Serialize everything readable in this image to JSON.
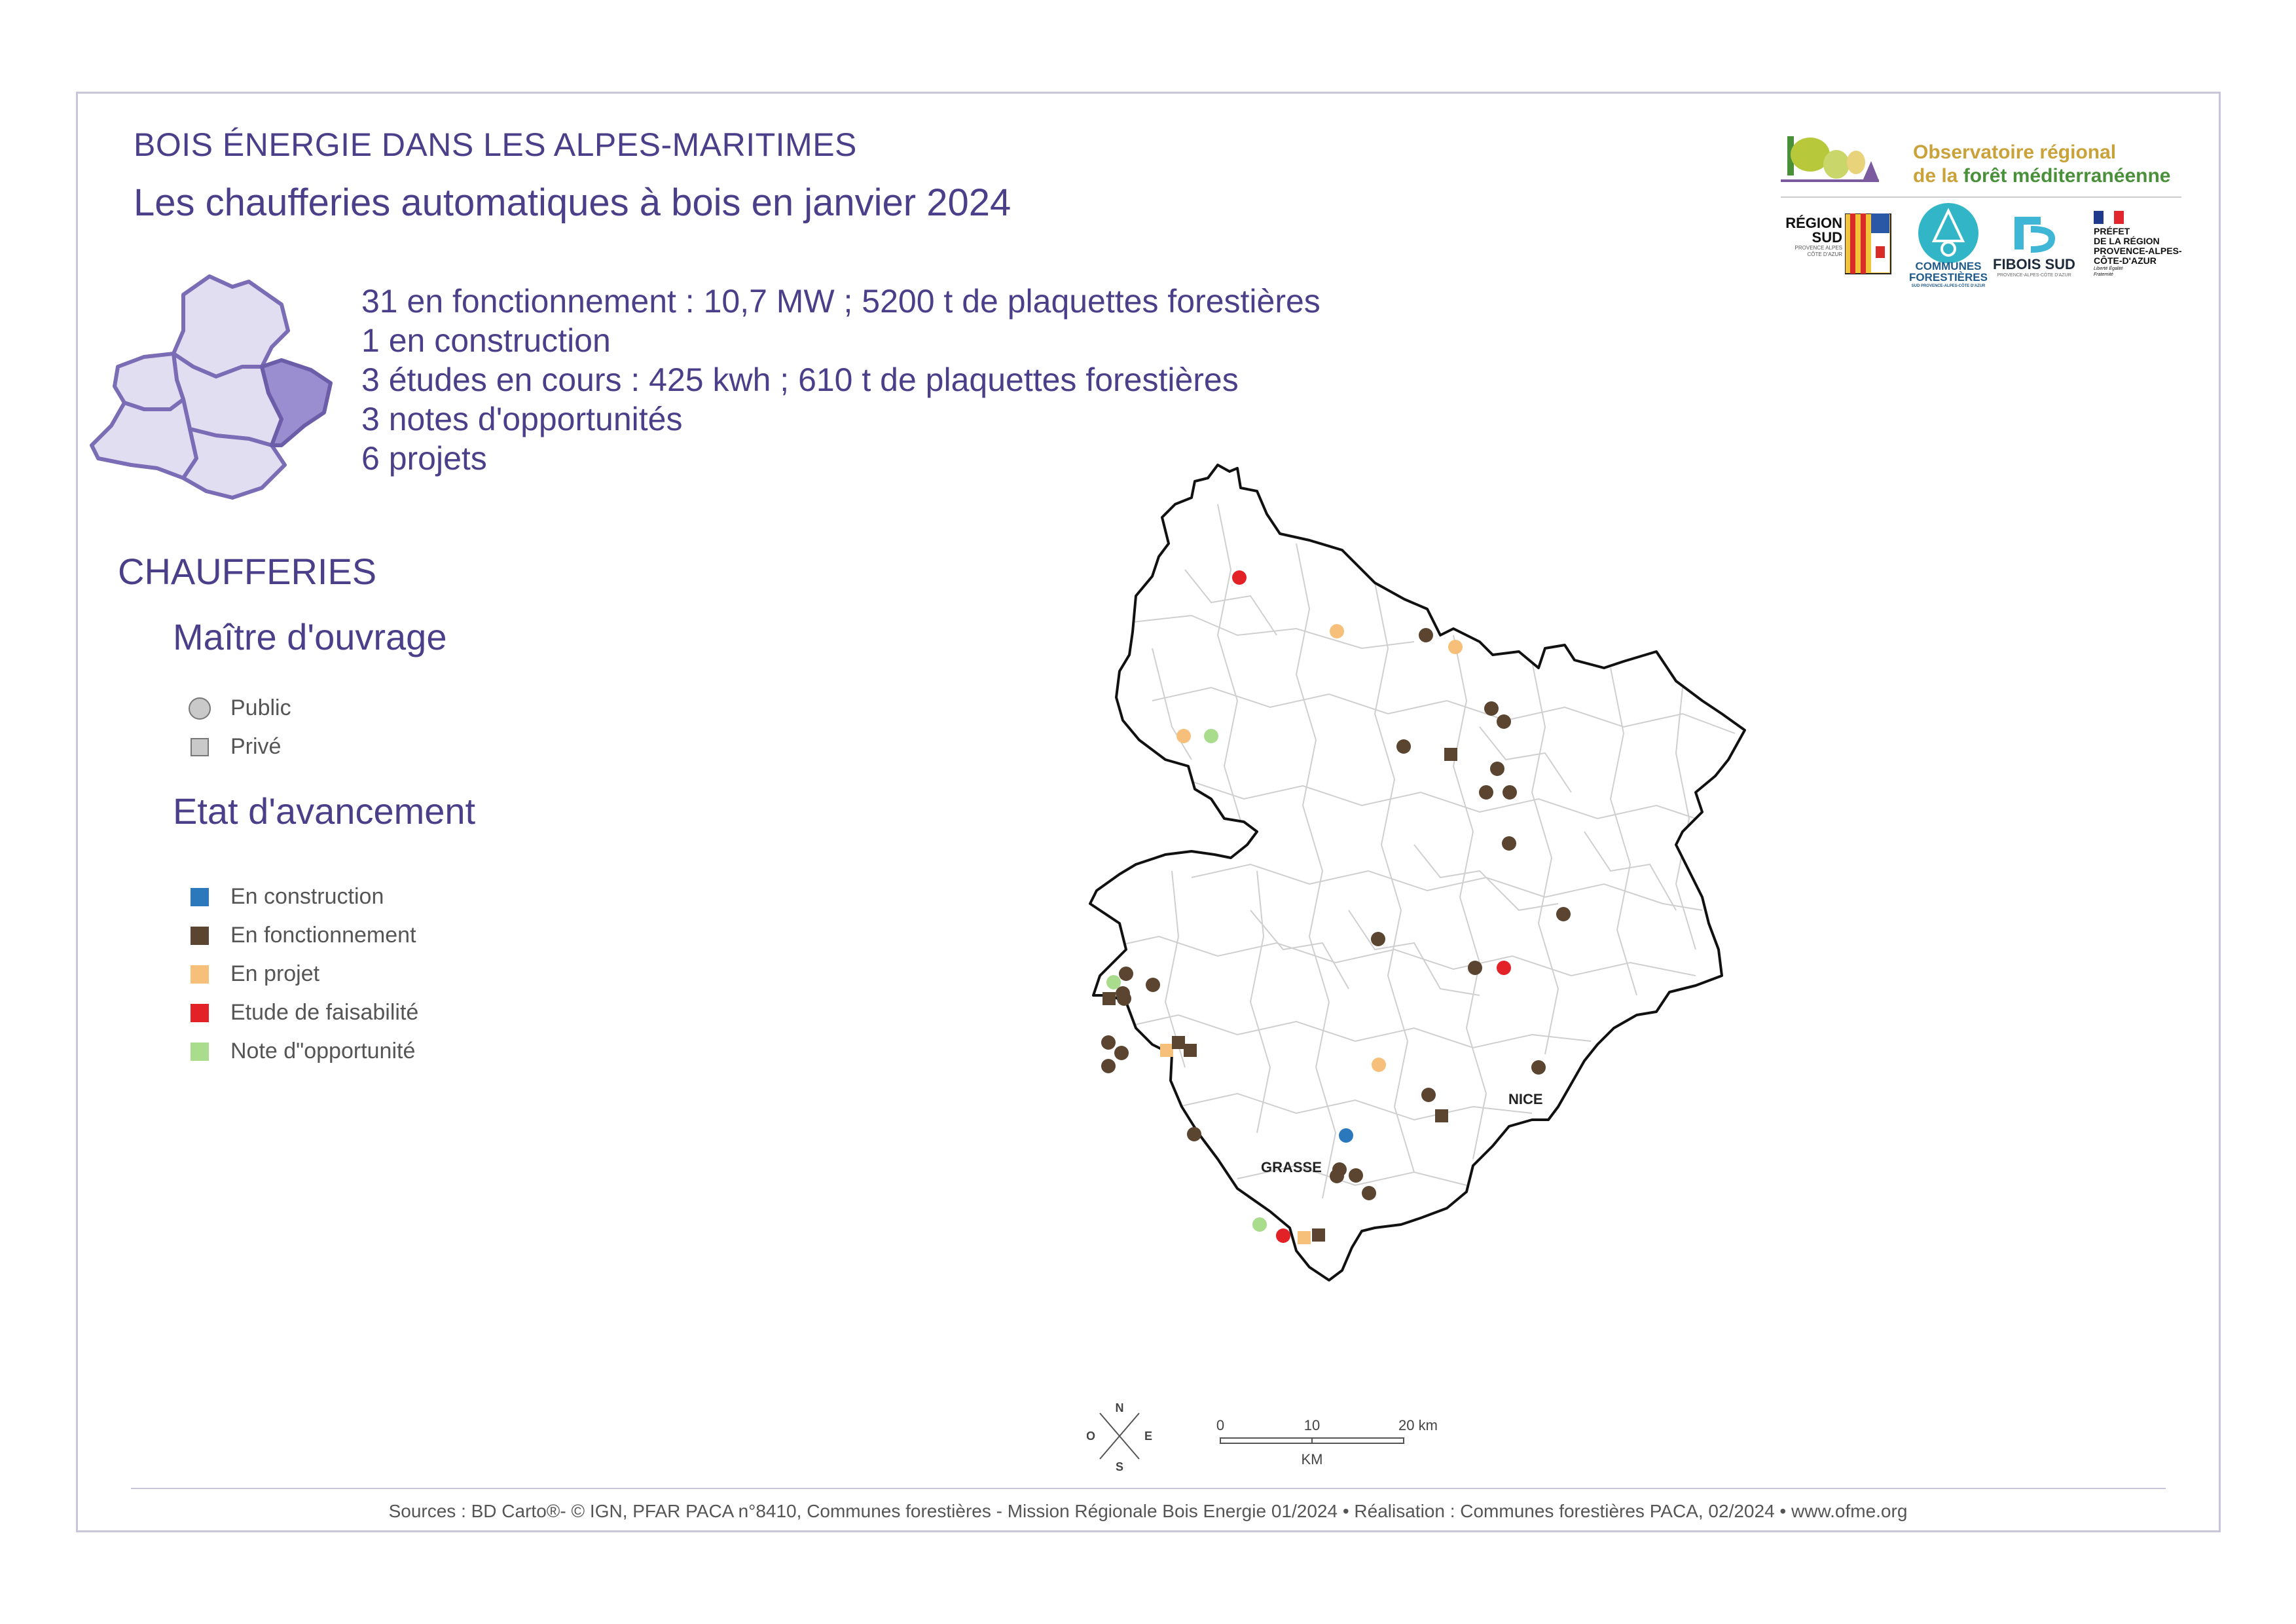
{
  "header": {
    "supertitle": "BOIS ÉNERGIE DANS LES ALPES-MARITIMES",
    "title": "Les chaufferies automatiques à bois en janvier 2024"
  },
  "stats": [
    "31 en fonctionnement : 10,7 MW ; 5200 t de plaquettes forestières",
    "1 en construction",
    "3 études en cours : 425 kwh ; 610 t de plaquettes forestières",
    "3 notes d'opportunités",
    "6 projets"
  ],
  "legend": {
    "heading": "CHAUFFERIES",
    "owner_heading": "Maître d'ouvrage",
    "owner_items": [
      {
        "label": "Public",
        "shape": "circle"
      },
      {
        "label": "Privé",
        "shape": "square"
      }
    ],
    "status_heading": "Etat d'avancement",
    "status_items": [
      {
        "label": "En construction",
        "color": "#2b78bd"
      },
      {
        "label": "En fonctionnement",
        "color": "#5b4530"
      },
      {
        "label": "En projet",
        "color": "#f7c07a"
      },
      {
        "label": "Etude de faisabilité",
        "color": "#e32227"
      },
      {
        "label": "Note d\"opportunité",
        "color": "#a9dc8d"
      }
    ]
  },
  "map": {
    "city_labels": [
      "NICE",
      "GRASSE"
    ],
    "compass": {
      "n": "N",
      "s": "S",
      "e": "E",
      "w": "O"
    },
    "scale": {
      "ticks": [
        "0",
        "10",
        "20 km"
      ],
      "unit": "KM"
    }
  },
  "logos": {
    "ofme_line1": "Observatoire régional",
    "ofme_line2a": "de la ",
    "ofme_line2b": "forêt méditerranéenne",
    "region_sud": "RÉGION",
    "region_sud2": "SUD",
    "region_sub": "PROVENCE ALPES CÔTE D'AZUR",
    "communes": "COMMUNES",
    "forestieres": "FORESTIÈRES",
    "communes_sub": "SUD PROVENCE-ALPES-CÔTE D'AZUR",
    "fibois": "FIBOIS SUD",
    "fibois_sub": "PROVENCE-ALPES-CÔTE D'AZUR",
    "prefet1": "PRÉFET",
    "prefet2": "DE LA RÉGION",
    "prefet3": "PROVENCE-ALPES-",
    "prefet4": "CÔTE-D'AZUR",
    "prefet_motto": "Liberté Égalité Fraternité"
  },
  "footer": "Sources : BD Carto®- © IGN, PFAR PACA n°8410, Communes forestières - Mission Régionale Bois Energie 01/2024 • Réalisation : Communes forestières PACA, 02/2024 • www.ofme.org",
  "sites": [
    {
      "shape": "circle",
      "status": "feasibility"
    },
    {
      "shape": "circle",
      "status": "project"
    },
    {
      "shape": "circle",
      "status": "operating"
    },
    {
      "shape": "circle",
      "status": "project"
    },
    {
      "shape": "circle",
      "status": "project"
    },
    {
      "shape": "circle",
      "status": "opportunity"
    },
    {
      "shape": "circle",
      "status": "operating"
    },
    {
      "shape": "circle",
      "status": "operating"
    },
    {
      "shape": "circle",
      "status": "operating"
    },
    {
      "shape": "square",
      "status": "operating"
    },
    {
      "shape": "circle",
      "status": "operating"
    },
    {
      "shape": "circle",
      "status": "operating"
    },
    {
      "shape": "circle",
      "status": "operating"
    },
    {
      "shape": "circle",
      "status": "operating"
    },
    {
      "shape": "circle",
      "status": "operating"
    },
    {
      "shape": "circle",
      "status": "operating"
    },
    {
      "shape": "circle",
      "status": "operating"
    },
    {
      "shape": "circle",
      "status": "feasibility"
    },
    {
      "shape": "circle",
      "status": "operating"
    },
    {
      "shape": "circle",
      "status": "opportunity"
    },
    {
      "shape": "circle",
      "status": "operating"
    },
    {
      "shape": "circle",
      "status": "operating"
    },
    {
      "shape": "square",
      "status": "operating"
    },
    {
      "shape": "circle",
      "status": "operating"
    },
    {
      "shape": "circle",
      "status": "operating"
    },
    {
      "shape": "circle",
      "status": "operating"
    },
    {
      "shape": "circle",
      "status": "operating"
    },
    {
      "shape": "square",
      "status": "project"
    },
    {
      "shape": "square",
      "status": "operating"
    },
    {
      "shape": "square",
      "status": "operating"
    },
    {
      "shape": "circle",
      "status": "project"
    },
    {
      "shape": "circle",
      "status": "operating"
    },
    {
      "shape": "square",
      "status": "operating"
    },
    {
      "shape": "circle",
      "status": "operating"
    },
    {
      "shape": "circle",
      "status": "operating"
    },
    {
      "shape": "circle",
      "status": "construction"
    },
    {
      "shape": "circle",
      "status": "operating"
    },
    {
      "shape": "circle",
      "status": "operating"
    },
    {
      "shape": "circle",
      "status": "operating"
    },
    {
      "shape": "circle",
      "status": "opportunity"
    },
    {
      "shape": "circle",
      "status": "feasibility"
    },
    {
      "shape": "square",
      "status": "project"
    },
    {
      "shape": "square",
      "status": "operating"
    },
    {
      "shape": "circle",
      "status": "operating"
    }
  ],
  "status_colors": {
    "construction": "#2b78bd",
    "operating": "#5b4530",
    "project": "#f7c07a",
    "feasibility": "#e32227",
    "opportunity": "#a9dc8d"
  }
}
